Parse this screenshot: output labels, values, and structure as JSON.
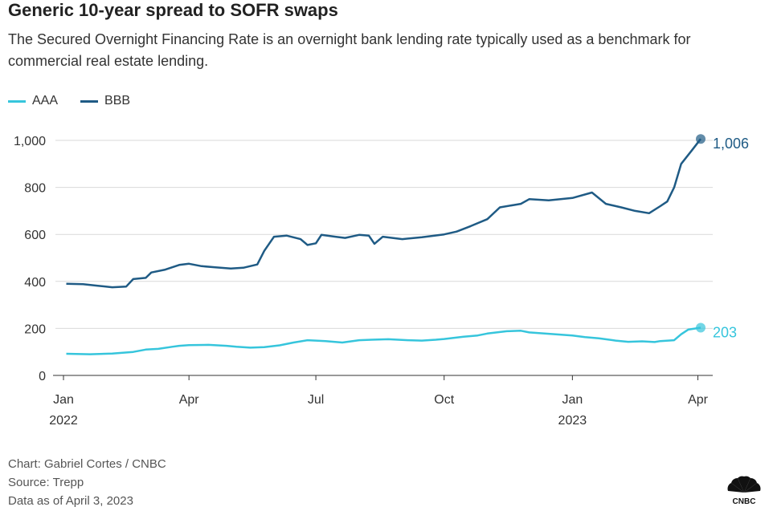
{
  "title": "Generic 10-year spread to SOFR swaps",
  "subtitle": "The Secured Overnight Financing Rate is an overnight bank lending rate typically used as a benchmark for commercial real estate lending.",
  "footer": {
    "credit": "Chart: Gabriel Cortes / CNBC",
    "source": "Source: Trepp",
    "date_note": "Data as of April 3, 2023"
  },
  "logo": {
    "text": "CNBC",
    "icon": "peacock-icon"
  },
  "chart_data": {
    "type": "line",
    "title": "Generic 10-year spread to SOFR swaps",
    "xlabel": "",
    "ylabel": "",
    "ylim": [
      0,
      1000
    ],
    "y_ticks": [
      0,
      200,
      400,
      600,
      800,
      1000
    ],
    "y_tick_labels": [
      "0",
      "200",
      "400",
      "600",
      "800",
      "1,000"
    ],
    "x_range": [
      "2022-01-01",
      "2023-04-03"
    ],
    "x_ticks": [
      {
        "date": "2022-01-01",
        "label": "Jan",
        "sublabel": "2022"
      },
      {
        "date": "2022-04-01",
        "label": "Apr",
        "sublabel": ""
      },
      {
        "date": "2022-07-01",
        "label": "Jul",
        "sublabel": ""
      },
      {
        "date": "2022-10-01",
        "label": "Oct",
        "sublabel": ""
      },
      {
        "date": "2023-01-01",
        "label": "Jan",
        "sublabel": "2023"
      },
      {
        "date": "2023-04-01",
        "label": "Apr",
        "sublabel": ""
      }
    ],
    "grid": true,
    "legend_position": "top-left",
    "series": [
      {
        "name": "AAA",
        "color": "#36c5dc",
        "end_label": "203",
        "points": [
          [
            "2022-01-03",
            92
          ],
          [
            "2022-01-20",
            90
          ],
          [
            "2022-02-05",
            93
          ],
          [
            "2022-02-20",
            100
          ],
          [
            "2022-03-01",
            110
          ],
          [
            "2022-03-10",
            113
          ],
          [
            "2022-03-20",
            122
          ],
          [
            "2022-03-25",
            126
          ],
          [
            "2022-04-01",
            129
          ],
          [
            "2022-04-15",
            130
          ],
          [
            "2022-04-28",
            126
          ],
          [
            "2022-05-05",
            122
          ],
          [
            "2022-05-15",
            118
          ],
          [
            "2022-05-25",
            120
          ],
          [
            "2022-06-05",
            128
          ],
          [
            "2022-06-15",
            140
          ],
          [
            "2022-06-25",
            150
          ],
          [
            "2022-07-01",
            148
          ],
          [
            "2022-07-08",
            146
          ],
          [
            "2022-07-20",
            140
          ],
          [
            "2022-08-01",
            150
          ],
          [
            "2022-08-10",
            152
          ],
          [
            "2022-08-22",
            154
          ],
          [
            "2022-09-05",
            150
          ],
          [
            "2022-09-15",
            148
          ],
          [
            "2022-09-25",
            152
          ],
          [
            "2022-10-01",
            155
          ],
          [
            "2022-10-15",
            165
          ],
          [
            "2022-10-25",
            170
          ],
          [
            "2022-11-01",
            178
          ],
          [
            "2022-11-15",
            188
          ],
          [
            "2022-11-25",
            190
          ],
          [
            "2022-12-01",
            183
          ],
          [
            "2022-12-15",
            177
          ],
          [
            "2023-01-01",
            170
          ],
          [
            "2023-01-10",
            163
          ],
          [
            "2023-01-20",
            158
          ],
          [
            "2023-02-01",
            148
          ],
          [
            "2023-02-10",
            143
          ],
          [
            "2023-02-20",
            145
          ],
          [
            "2023-03-01",
            142
          ],
          [
            "2023-03-05",
            146
          ],
          [
            "2023-03-15",
            150
          ],
          [
            "2023-03-20",
            175
          ],
          [
            "2023-03-25",
            195
          ],
          [
            "2023-04-03",
            203
          ]
        ]
      },
      {
        "name": "BBB",
        "color": "#1f5b85",
        "end_label": "1,006",
        "points": [
          [
            "2022-01-03",
            390
          ],
          [
            "2022-01-15",
            388
          ],
          [
            "2022-01-25",
            382
          ],
          [
            "2022-02-05",
            375
          ],
          [
            "2022-02-15",
            378
          ],
          [
            "2022-02-20",
            410
          ],
          [
            "2022-03-01",
            415
          ],
          [
            "2022-03-05",
            438
          ],
          [
            "2022-03-15",
            450
          ],
          [
            "2022-03-25",
            470
          ],
          [
            "2022-04-01",
            475
          ],
          [
            "2022-04-10",
            465
          ],
          [
            "2022-04-20",
            460
          ],
          [
            "2022-05-01",
            455
          ],
          [
            "2022-05-10",
            458
          ],
          [
            "2022-05-20",
            472
          ],
          [
            "2022-05-25",
            530
          ],
          [
            "2022-06-01",
            590
          ],
          [
            "2022-06-10",
            595
          ],
          [
            "2022-06-20",
            580
          ],
          [
            "2022-06-25",
            555
          ],
          [
            "2022-07-01",
            562
          ],
          [
            "2022-07-05",
            598
          ],
          [
            "2022-07-15",
            590
          ],
          [
            "2022-07-22",
            585
          ],
          [
            "2022-08-01",
            598
          ],
          [
            "2022-08-08",
            595
          ],
          [
            "2022-08-12",
            560
          ],
          [
            "2022-08-18",
            590
          ],
          [
            "2022-09-01",
            580
          ],
          [
            "2022-09-15",
            588
          ],
          [
            "2022-10-01",
            600
          ],
          [
            "2022-10-10",
            612
          ],
          [
            "2022-10-20",
            635
          ],
          [
            "2022-11-01",
            665
          ],
          [
            "2022-11-10",
            715
          ],
          [
            "2022-11-25",
            730
          ],
          [
            "2022-12-01",
            750
          ],
          [
            "2022-12-15",
            745
          ],
          [
            "2023-01-01",
            755
          ],
          [
            "2023-01-15",
            778
          ],
          [
            "2023-01-25",
            730
          ],
          [
            "2023-02-05",
            715
          ],
          [
            "2023-02-15",
            700
          ],
          [
            "2023-02-25",
            690
          ],
          [
            "2023-03-05",
            720
          ],
          [
            "2023-03-10",
            740
          ],
          [
            "2023-03-15",
            800
          ],
          [
            "2023-03-20",
            900
          ],
          [
            "2023-03-28",
            960
          ],
          [
            "2023-04-03",
            1006
          ]
        ]
      }
    ]
  }
}
